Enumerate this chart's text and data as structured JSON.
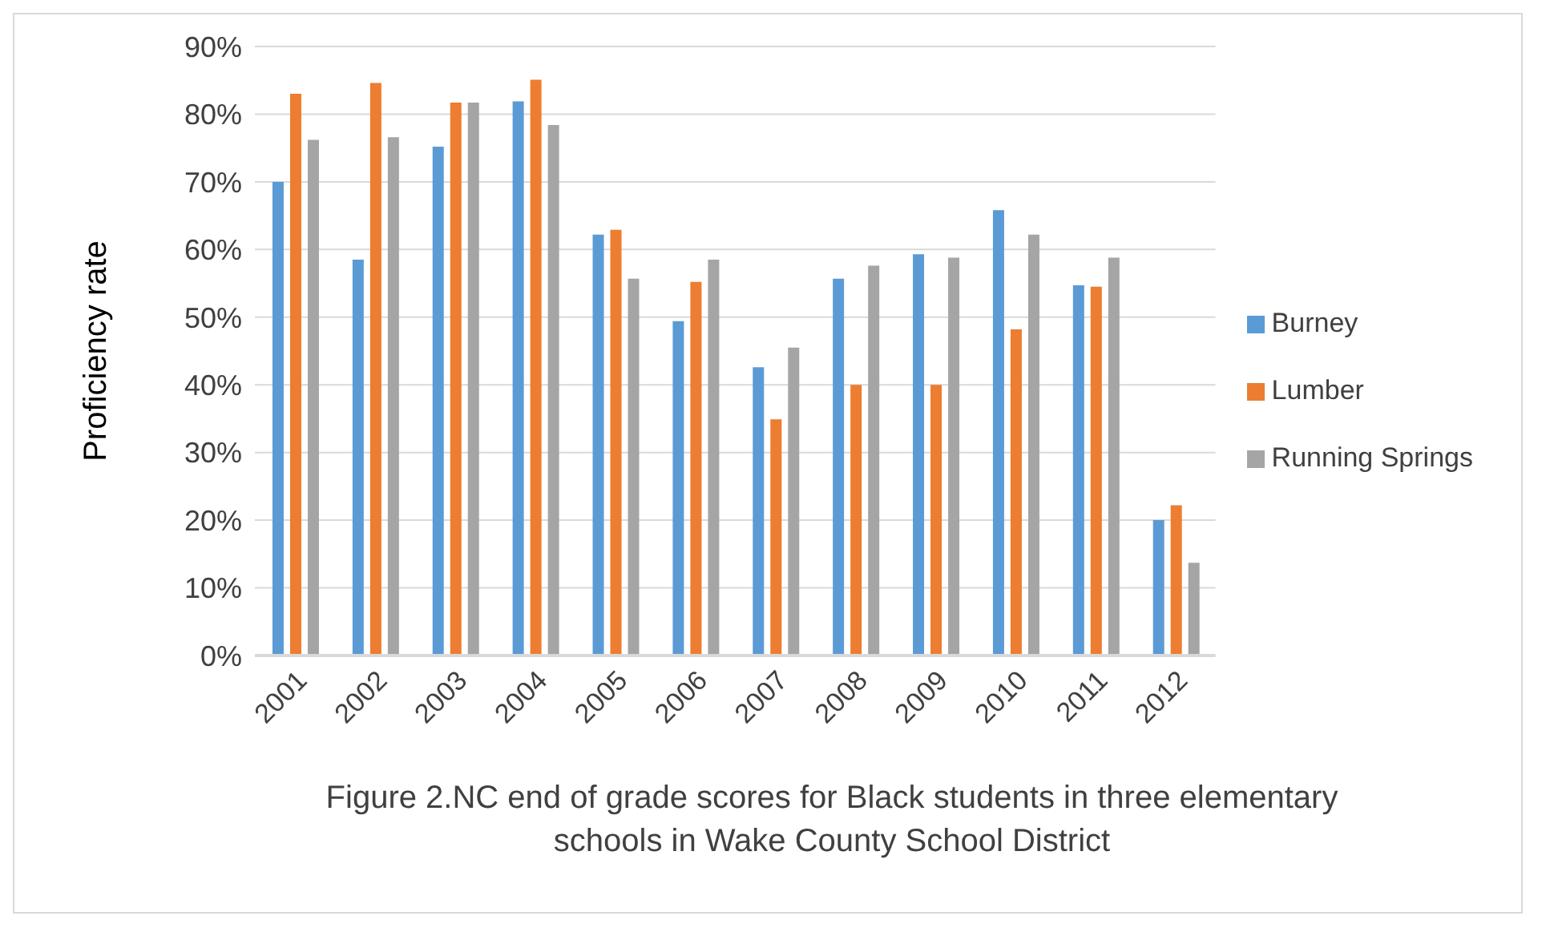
{
  "chart_data": {
    "type": "bar",
    "ylabel": "Proficiency rate",
    "categories": [
      "2001",
      "2002",
      "2003",
      "2004",
      "2005",
      "2006",
      "2007",
      "2008",
      "2009",
      "2010",
      "2011",
      "2012"
    ],
    "series": [
      {
        "name": "Burney",
        "color": "#5b9bd5",
        "values": [
          70,
          58.5,
          75.2,
          81.9,
          62.2,
          49.4,
          42.6,
          55.7,
          59.3,
          65.8,
          54.7,
          20
        ]
      },
      {
        "name": "Lumber",
        "color": "#ed7d31",
        "values": [
          83,
          84.6,
          81.7,
          85.1,
          62.9,
          55.2,
          34.9,
          40,
          40,
          48.2,
          54.5,
          22.2
        ]
      },
      {
        "name": "Running Springs",
        "color": "#a5a5a5",
        "values": [
          76.2,
          76.6,
          81.7,
          78.4,
          55.7,
          58.5,
          45.5,
          57.6,
          58.8,
          62.2,
          58.8,
          13.7
        ]
      }
    ],
    "ylim": [
      0,
      90
    ],
    "yticks": [
      {
        "value": 0,
        "label": "0%"
      },
      {
        "value": 10,
        "label": "10%"
      },
      {
        "value": 20,
        "label": "20%"
      },
      {
        "value": 30,
        "label": "30%"
      },
      {
        "value": 40,
        "label": "40%"
      },
      {
        "value": 50,
        "label": "50%"
      },
      {
        "value": 60,
        "label": "60%"
      },
      {
        "value": 70,
        "label": "70%"
      },
      {
        "value": 80,
        "label": "80%"
      },
      {
        "value": 90,
        "label": "90%"
      }
    ],
    "grid": "y",
    "legend": "right",
    "annotations": [
      "Figure 2.NC end of grade scores for Black students in three elementary schools in Wake County School District"
    ]
  }
}
